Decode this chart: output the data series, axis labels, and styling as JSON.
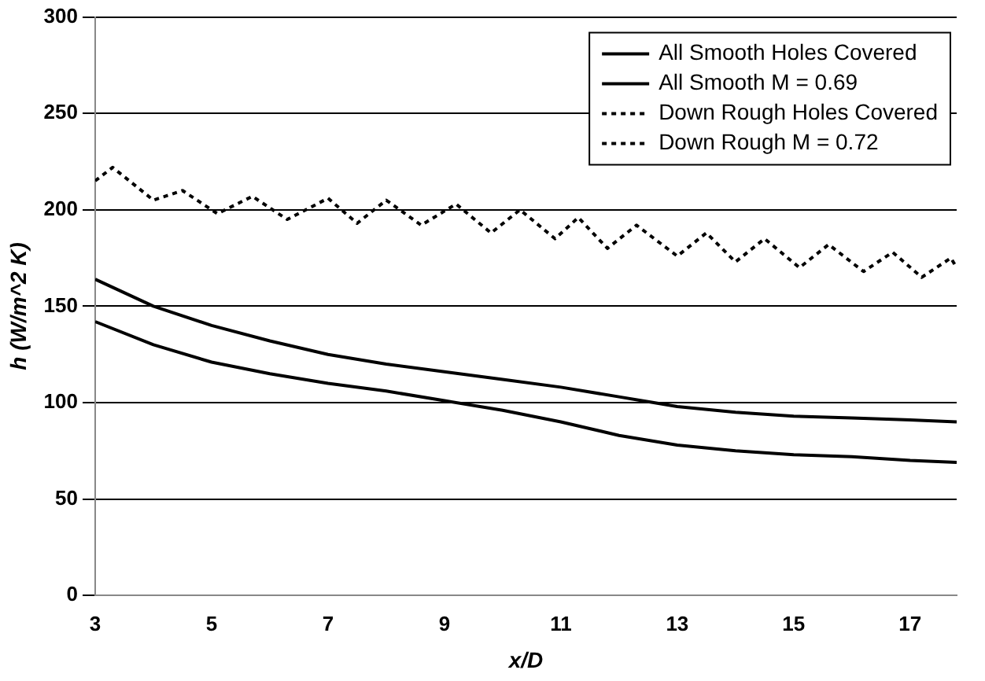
{
  "chart_data": {
    "type": "line",
    "xlabel": "x/D",
    "ylabel": "h (W/m^2 K)",
    "xlim": [
      3,
      17.8
    ],
    "xticks": [
      3,
      5,
      7,
      9,
      11,
      13,
      15,
      17
    ],
    "ylim": [
      0,
      300
    ],
    "yticks": [
      0,
      50,
      100,
      150,
      200,
      250,
      300
    ],
    "grid": "y",
    "legend": "top right",
    "marker": "none",
    "series": [
      {
        "name": "All Smooth Holes Covered",
        "color": "#000000",
        "line_style": "solid",
        "x": [
          3,
          4,
          5,
          6,
          7,
          8,
          9,
          10,
          11,
          12,
          13,
          14,
          15,
          16,
          17,
          17.8
        ],
        "values": [
          164,
          150,
          140,
          132,
          125,
          120,
          116,
          112,
          108,
          103,
          98,
          95,
          93,
          92,
          91,
          90
        ]
      },
      {
        "name": "All Smooth M = 0.69",
        "color": "#000000",
        "line_style": "solid",
        "x": [
          3,
          4,
          5,
          6,
          7,
          8,
          9,
          10,
          11,
          12,
          13,
          14,
          15,
          16,
          17,
          17.8
        ],
        "values": [
          142,
          130,
          121,
          115,
          110,
          106,
          101,
          96,
          90,
          83,
          78,
          75,
          73,
          72,
          70,
          69
        ]
      },
      {
        "name": "Down Rough Holes Covered",
        "color": "#000000",
        "line_style": "dotted"
      },
      {
        "name": "Down Rough M = 0.72",
        "color": "#000000",
        "line_style": "dotted",
        "x": [
          3,
          3.3,
          4,
          4.5,
          5.1,
          5.7,
          6.3,
          7,
          7.5,
          8,
          8.6,
          9.2,
          9.8,
          10.3,
          10.9,
          11.3,
          11.8,
          12.3,
          13,
          13.5,
          14,
          14.5,
          15.1,
          15.6,
          16.2,
          16.7,
          17.2,
          17.7,
          17.8
        ],
        "values": [
          215,
          222,
          205,
          210,
          198,
          207,
          195,
          206,
          193,
          205,
          192,
          203,
          188,
          200,
          185,
          196,
          180,
          192,
          176,
          188,
          173,
          185,
          170,
          182,
          168,
          178,
          165,
          175,
          170
        ]
      }
    ]
  }
}
